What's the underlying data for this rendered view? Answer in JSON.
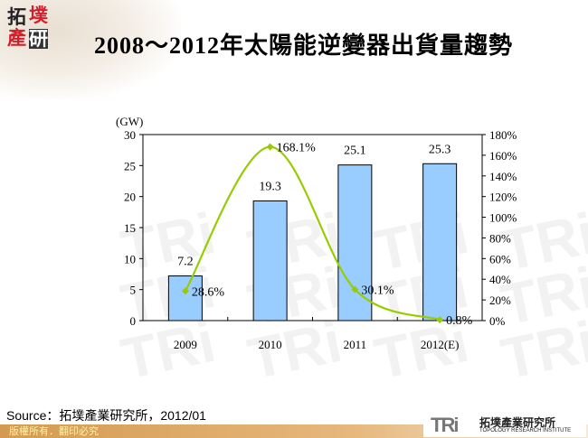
{
  "slide": {
    "title": "2008～2012年太陽能逆變器出貨量趨勢",
    "logo_chars": [
      "拓",
      "墣",
      "產",
      "研"
    ],
    "source": "Source：拓墣產業研究所，2012/01",
    "footer": "版權所有．翻印必究",
    "brand_mark": "TRi",
    "brand_cn": "拓墣產業研究所",
    "brand_en": "TOPOLOGY RESEARCH INSTITUTE"
  },
  "chart_data": {
    "type": "bar+line",
    "categories": [
      "2009",
      "2010",
      "2011",
      "2012(E)"
    ],
    "series": [
      {
        "type": "bar",
        "axis": "left",
        "values": [
          7.2,
          19.3,
          25.1,
          25.3
        ],
        "labels": [
          "7.2",
          "19.3",
          "25.1",
          "25.3"
        ],
        "color": "#99ccff"
      },
      {
        "type": "line",
        "axis": "right",
        "values": [
          28.6,
          168.1,
          30.1,
          0.8
        ],
        "labels": [
          "28.6%",
          "168.1%",
          "30.1%",
          "0.8%"
        ],
        "color": "#99cc00"
      }
    ],
    "ylabel": "(GW)",
    "ylim": [
      0,
      30
    ],
    "yticks": [
      "0",
      "5",
      "10",
      "15",
      "20",
      "25",
      "30"
    ],
    "y2lim": [
      0,
      180
    ],
    "y2ticks": [
      "0%",
      "20%",
      "40%",
      "60%",
      "80%",
      "100%",
      "120%",
      "140%",
      "160%",
      "180%"
    ],
    "grid": false,
    "legend": "none"
  }
}
